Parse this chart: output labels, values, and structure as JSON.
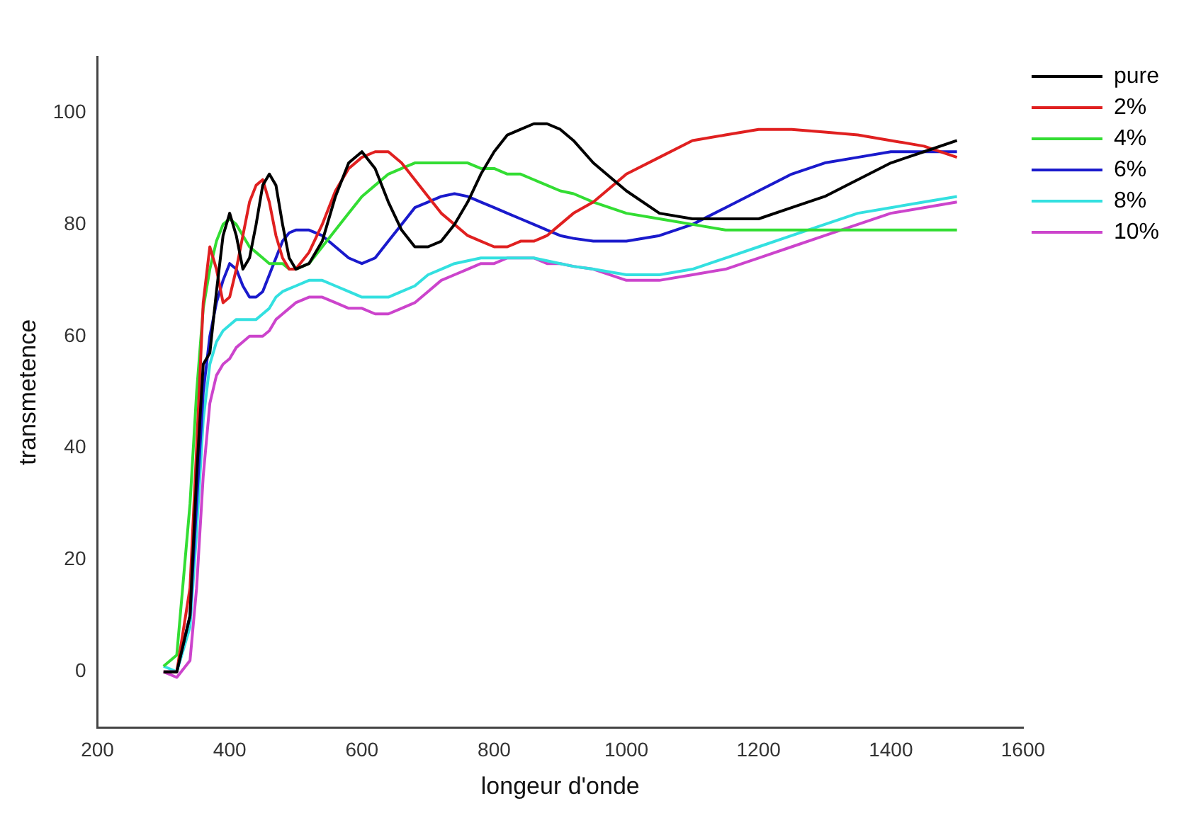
{
  "chart_data": {
    "type": "line",
    "xlabel": "longeur d'onde",
    "ylabel": "transmetence",
    "x": [
      300,
      320,
      340,
      350,
      360,
      370,
      380,
      390,
      400,
      410,
      420,
      430,
      440,
      450,
      460,
      470,
      480,
      490,
      500,
      520,
      540,
      560,
      580,
      600,
      620,
      640,
      660,
      680,
      700,
      720,
      740,
      760,
      780,
      800,
      820,
      840,
      860,
      880,
      900,
      920,
      950,
      1000,
      1050,
      1100,
      1150,
      1200,
      1250,
      1300,
      1350,
      1400,
      1450,
      1500
    ],
    "xlim": [
      200,
      1600
    ],
    "xticks": [
      200,
      400,
      600,
      800,
      1000,
      1200,
      1400,
      1600
    ],
    "ylim": [
      -10,
      110
    ],
    "yticks": [
      0,
      20,
      40,
      60,
      80,
      100
    ],
    "grid": false,
    "legend": "top right",
    "series": [
      {
        "name": "pure",
        "color": "#000000",
        "values": [
          0,
          0,
          10,
          35,
          55,
          57,
          68,
          78,
          82,
          78,
          72,
          74,
          80,
          87,
          89,
          87,
          80,
          74,
          72,
          73,
          77,
          85,
          91,
          93,
          90,
          84,
          79,
          76,
          76,
          77,
          80,
          84,
          89,
          93,
          96,
          97,
          98,
          98,
          97,
          95,
          91,
          86,
          82,
          81,
          81,
          81,
          83,
          85,
          88,
          91,
          93,
          95
        ]
      },
      {
        "name": "2%",
        "color": "#e02020",
        "values": [
          0,
          0,
          15,
          40,
          66,
          76,
          72,
          66,
          67,
          72,
          78,
          84,
          87,
          88,
          84,
          78,
          74,
          72,
          72,
          75,
          80,
          86,
          90,
          92,
          93,
          93,
          91,
          88,
          85,
          82,
          80,
          78,
          77,
          76,
          76,
          77,
          77,
          78,
          80,
          82,
          84,
          89,
          92,
          95,
          96,
          97,
          97,
          96.5,
          96,
          95,
          94,
          92
        ]
      },
      {
        "name": "4%",
        "color": "#33dd33",
        "values": [
          1,
          3,
          30,
          50,
          65,
          72,
          77,
          80,
          81,
          80,
          78,
          76,
          75,
          74,
          73,
          73,
          73,
          72,
          72,
          73,
          76,
          79,
          82,
          85,
          87,
          89,
          90,
          91,
          91,
          91,
          91,
          91,
          90,
          90,
          89,
          89,
          88,
          87,
          86,
          85.5,
          84,
          82,
          81,
          80,
          79,
          79,
          79,
          79,
          79,
          79,
          79,
          79
        ]
      },
      {
        "name": "6%",
        "color": "#1a1acc",
        "values": [
          0,
          0,
          10,
          30,
          50,
          60,
          66,
          70,
          73,
          72,
          69,
          67,
          67,
          68,
          71,
          74,
          77,
          78.5,
          79,
          79,
          78,
          76,
          74,
          73,
          74,
          77,
          80,
          83,
          84,
          85,
          85.5,
          85,
          84,
          83,
          82,
          81,
          80,
          79,
          78,
          77.5,
          77,
          77,
          78,
          80,
          83,
          86,
          89,
          91,
          92,
          93,
          93,
          93
        ]
      },
      {
        "name": "8%",
        "color": "#33e0e0",
        "values": [
          1,
          0,
          8,
          25,
          45,
          55,
          59,
          61,
          62,
          63,
          63,
          63,
          63,
          64,
          65,
          67,
          68,
          68.5,
          69,
          70,
          70,
          69,
          68,
          67,
          67,
          67,
          68,
          69,
          71,
          72,
          73,
          73.5,
          74,
          74,
          74,
          74,
          74,
          73.5,
          73,
          72.5,
          72,
          71,
          71,
          72,
          74,
          76,
          78,
          80,
          82,
          83,
          84,
          85
        ]
      },
      {
        "name": "10%",
        "color": "#cc44cc",
        "values": [
          0,
          -1,
          2,
          15,
          35,
          48,
          53,
          55,
          56,
          58,
          59,
          60,
          60,
          60,
          61,
          63,
          64,
          65,
          66,
          67,
          67,
          66,
          65,
          65,
          64,
          64,
          65,
          66,
          68,
          70,
          71,
          72,
          73,
          73,
          74,
          74,
          74,
          73,
          73,
          72.5,
          72,
          70,
          70,
          71,
          72,
          74,
          76,
          78,
          80,
          82,
          83,
          84
        ]
      }
    ]
  }
}
